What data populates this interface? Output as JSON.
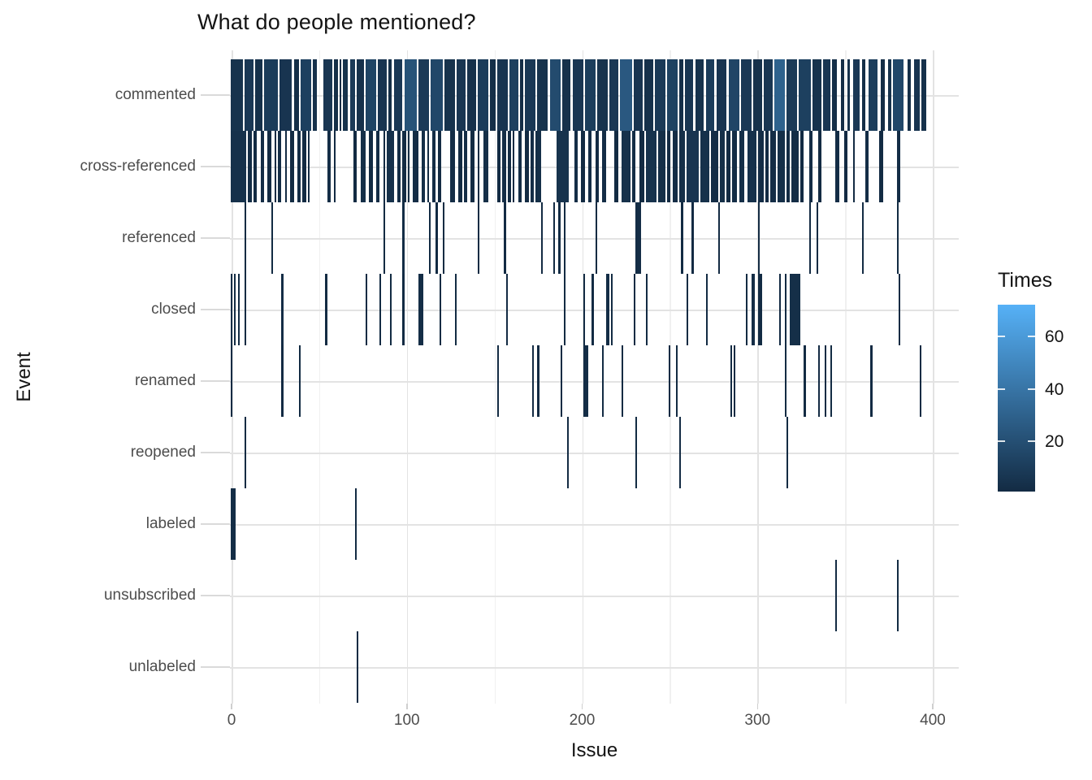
{
  "title": "What do people mentioned?",
  "chart_data": {
    "type": "heatmap",
    "title": "What do people mentioned?",
    "xlabel": "Issue",
    "ylabel": "Event",
    "x_ticks": [
      0,
      100,
      200,
      300,
      400
    ],
    "x_range": [
      -1,
      415
    ],
    "grid": {
      "x_step": 50,
      "y_lines": "row-centers",
      "background": "white"
    },
    "categories": [
      "commented",
      "cross-referenced",
      "referenced",
      "closed",
      "renamed",
      "reopened",
      "labeled",
      "unsubscribed",
      "unlabeled"
    ],
    "legend": {
      "title": "Times",
      "ticks": [
        20,
        40,
        60
      ],
      "domain": [
        1,
        72
      ],
      "low_color": "#132B43",
      "high_color": "#56B1F7",
      "position": "right"
    },
    "rows": [
      {
        "event": "commented",
        "segments": [
          [
            0,
            6,
            5
          ],
          [
            8,
            12,
            8
          ],
          [
            14,
            17,
            4
          ],
          [
            19,
            26,
            10
          ],
          [
            28,
            34,
            6
          ],
          [
            36,
            38,
            3
          ],
          [
            40,
            45,
            12
          ],
          [
            47,
            48,
            4
          ],
          [
            53,
            57,
            7
          ],
          [
            59,
            60,
            3
          ],
          [
            62,
            62,
            2
          ],
          [
            64,
            66,
            5
          ],
          [
            68,
            70,
            9
          ],
          [
            72,
            75,
            4
          ],
          [
            77,
            82,
            14
          ],
          [
            84,
            88,
            6
          ],
          [
            90,
            91,
            3
          ],
          [
            93,
            97,
            8
          ],
          [
            99,
            105,
            22
          ],
          [
            107,
            112,
            9
          ],
          [
            114,
            120,
            16
          ],
          [
            122,
            127,
            5
          ],
          [
            129,
            133,
            7
          ],
          [
            135,
            139,
            4
          ],
          [
            141,
            146,
            10
          ],
          [
            148,
            150,
            3
          ],
          [
            152,
            157,
            6
          ],
          [
            159,
            163,
            12
          ],
          [
            165,
            166,
            2
          ],
          [
            168,
            173,
            8
          ],
          [
            175,
            180,
            5
          ],
          [
            182,
            187,
            18
          ],
          [
            189,
            193,
            4
          ],
          [
            195,
            200,
            7
          ],
          [
            202,
            207,
            11
          ],
          [
            209,
            214,
            5
          ],
          [
            216,
            220,
            8
          ],
          [
            222,
            228,
            25
          ],
          [
            230,
            234,
            6
          ],
          [
            236,
            240,
            4
          ],
          [
            242,
            247,
            9
          ],
          [
            249,
            254,
            13
          ],
          [
            256,
            257,
            3
          ],
          [
            259,
            263,
            7
          ],
          [
            265,
            269,
            5
          ],
          [
            271,
            275,
            10
          ],
          [
            277,
            282,
            6
          ],
          [
            284,
            289,
            15
          ],
          [
            291,
            296,
            8
          ],
          [
            298,
            302,
            4
          ],
          [
            304,
            308,
            7
          ],
          [
            310,
            315,
            30
          ],
          [
            317,
            322,
            9
          ],
          [
            324,
            330,
            12
          ],
          [
            332,
            336,
            5
          ],
          [
            338,
            341,
            7
          ],
          [
            343,
            345,
            3
          ],
          [
            348,
            349,
            2
          ],
          [
            352,
            352,
            4
          ],
          [
            355,
            358,
            8
          ],
          [
            360,
            361,
            3
          ],
          [
            364,
            368,
            11
          ],
          [
            371,
            372,
            2
          ],
          [
            375,
            376,
            5
          ],
          [
            378,
            383,
            16
          ],
          [
            386,
            387,
            3
          ],
          [
            390,
            392,
            6
          ],
          [
            394,
            396,
            4
          ]
        ]
      },
      {
        "event": "cross-referenced",
        "segments": [
          [
            0,
            8,
            4
          ],
          [
            10,
            11,
            2
          ],
          [
            13,
            14,
            1
          ],
          [
            17,
            18,
            2
          ],
          [
            21,
            22,
            1
          ],
          [
            25,
            25,
            1
          ],
          [
            27,
            28,
            2
          ],
          [
            31,
            31,
            1
          ],
          [
            34,
            35,
            1
          ],
          [
            38,
            39,
            2
          ],
          [
            41,
            42,
            1
          ],
          [
            44,
            44,
            1
          ],
          [
            55,
            56,
            2
          ],
          [
            59,
            59,
            1
          ],
          [
            70,
            71,
            1
          ],
          [
            74,
            76,
            3
          ],
          [
            79,
            80,
            1
          ],
          [
            83,
            84,
            2
          ],
          [
            87,
            87,
            1
          ],
          [
            89,
            92,
            4
          ],
          [
            95,
            96,
            2
          ],
          [
            98,
            99,
            1
          ],
          [
            101,
            101,
            1
          ],
          [
            104,
            106,
            2
          ],
          [
            109,
            110,
            3
          ],
          [
            112,
            112,
            1
          ],
          [
            115,
            116,
            2
          ],
          [
            118,
            119,
            1
          ],
          [
            125,
            127,
            2
          ],
          [
            130,
            131,
            1
          ],
          [
            133,
            134,
            2
          ],
          [
            137,
            138,
            1
          ],
          [
            141,
            141,
            1
          ],
          [
            144,
            146,
            3
          ],
          [
            152,
            153,
            1
          ],
          [
            155,
            156,
            2
          ],
          [
            158,
            159,
            1
          ],
          [
            161,
            161,
            1
          ],
          [
            164,
            165,
            2
          ],
          [
            168,
            169,
            1
          ],
          [
            171,
            172,
            2
          ],
          [
            174,
            176,
            3
          ],
          [
            186,
            192,
            5
          ],
          [
            196,
            197,
            2
          ],
          [
            200,
            201,
            1
          ],
          [
            204,
            205,
            2
          ],
          [
            208,
            209,
            1
          ],
          [
            212,
            213,
            2
          ],
          [
            219,
            220,
            1
          ],
          [
            223,
            227,
            4
          ],
          [
            229,
            230,
            2
          ],
          [
            233,
            235,
            1
          ],
          [
            237,
            242,
            5
          ],
          [
            244,
            247,
            3
          ],
          [
            249,
            250,
            1
          ],
          [
            252,
            254,
            2
          ],
          [
            256,
            258,
            3
          ],
          [
            260,
            266,
            6
          ],
          [
            268,
            272,
            4
          ],
          [
            274,
            277,
            2
          ],
          [
            279,
            281,
            3
          ],
          [
            283,
            284,
            1
          ],
          [
            286,
            288,
            2
          ],
          [
            290,
            292,
            3
          ],
          [
            295,
            299,
            4
          ],
          [
            301,
            303,
            2
          ],
          [
            305,
            306,
            1
          ],
          [
            308,
            310,
            2
          ],
          [
            312,
            315,
            3
          ],
          [
            317,
            318,
            1
          ],
          [
            320,
            323,
            2
          ],
          [
            325,
            326,
            1
          ],
          [
            330,
            331,
            2
          ],
          [
            335,
            336,
            1
          ],
          [
            345,
            346,
            2
          ],
          [
            350,
            351,
            1
          ],
          [
            355,
            355,
            1
          ],
          [
            362,
            363,
            2
          ],
          [
            370,
            371,
            1
          ],
          [
            380,
            381,
            2
          ]
        ]
      },
      {
        "event": "referenced",
        "segments": [
          [
            8,
            8,
            1
          ],
          [
            23,
            23,
            1
          ],
          [
            87,
            87,
            1
          ],
          [
            98,
            98,
            2
          ],
          [
            113,
            113,
            1
          ],
          [
            117,
            117,
            1
          ],
          [
            121,
            121,
            1
          ],
          [
            141,
            141,
            1
          ],
          [
            156,
            156,
            1
          ],
          [
            177,
            177,
            1
          ],
          [
            184,
            184,
            1
          ],
          [
            187,
            187,
            2
          ],
          [
            190,
            190,
            1
          ],
          [
            208,
            208,
            1
          ],
          [
            231,
            233,
            2
          ],
          [
            257,
            257,
            1
          ],
          [
            263,
            263,
            1
          ],
          [
            278,
            278,
            1
          ],
          [
            301,
            301,
            1
          ],
          [
            330,
            330,
            1
          ],
          [
            334,
            334,
            1
          ],
          [
            360,
            360,
            1
          ],
          [
            380,
            380,
            1
          ]
        ]
      },
      {
        "event": "closed",
        "segments": [
          [
            0,
            0,
            2
          ],
          [
            2,
            2,
            1
          ],
          [
            4,
            4,
            1
          ],
          [
            8,
            8,
            1
          ],
          [
            29,
            29,
            2
          ],
          [
            54,
            54,
            1
          ],
          [
            77,
            77,
            1
          ],
          [
            85,
            85,
            1
          ],
          [
            91,
            91,
            1
          ],
          [
            98,
            98,
            1
          ],
          [
            107,
            109,
            2
          ],
          [
            119,
            119,
            1
          ],
          [
            128,
            128,
            1
          ],
          [
            157,
            157,
            1
          ],
          [
            190,
            190,
            1
          ],
          [
            201,
            201,
            1
          ],
          [
            206,
            206,
            1
          ],
          [
            214,
            215,
            2
          ],
          [
            217,
            217,
            1
          ],
          [
            230,
            230,
            1
          ],
          [
            237,
            237,
            1
          ],
          [
            260,
            260,
            1
          ],
          [
            271,
            271,
            1
          ],
          [
            294,
            294,
            1
          ],
          [
            297,
            298,
            2
          ],
          [
            301,
            302,
            1
          ],
          [
            313,
            313,
            1
          ],
          [
            316,
            316,
            1
          ],
          [
            319,
            324,
            3
          ],
          [
            381,
            381,
            1
          ]
        ]
      },
      {
        "event": "renamed",
        "segments": [
          [
            0,
            0,
            1
          ],
          [
            29,
            29,
            1
          ],
          [
            39,
            39,
            1
          ],
          [
            152,
            152,
            1
          ],
          [
            172,
            172,
            1
          ],
          [
            175,
            175,
            1
          ],
          [
            188,
            188,
            1
          ],
          [
            201,
            203,
            2
          ],
          [
            212,
            212,
            1
          ],
          [
            223,
            223,
            1
          ],
          [
            250,
            250,
            1
          ],
          [
            254,
            254,
            1
          ],
          [
            285,
            285,
            1
          ],
          [
            287,
            287,
            1
          ],
          [
            316,
            316,
            1
          ],
          [
            327,
            327,
            1
          ],
          [
            335,
            335,
            1
          ],
          [
            339,
            339,
            1
          ],
          [
            342,
            342,
            1
          ],
          [
            365,
            365,
            1
          ],
          [
            393,
            393,
            1
          ]
        ]
      },
      {
        "event": "reopened",
        "segments": [
          [
            8,
            8,
            1
          ],
          [
            192,
            192,
            1
          ],
          [
            231,
            231,
            1
          ],
          [
            256,
            256,
            1
          ],
          [
            317,
            317,
            1
          ]
        ]
      },
      {
        "event": "labeled",
        "segments": [
          [
            0,
            2,
            2
          ],
          [
            71,
            71,
            1
          ]
        ]
      },
      {
        "event": "unsubscribed",
        "segments": [
          [
            345,
            345,
            1
          ],
          [
            380,
            380,
            1
          ]
        ]
      },
      {
        "event": "unlabeled",
        "segments": [
          [
            72,
            72,
            1
          ]
        ]
      }
    ]
  }
}
